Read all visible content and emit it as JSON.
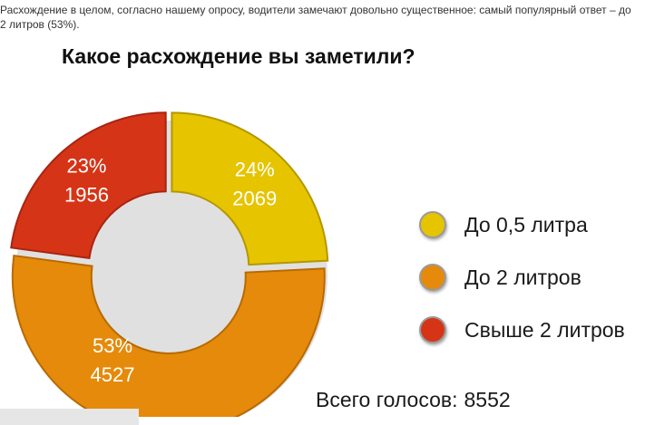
{
  "intro_text": "Расхождение в целом, согласно нашему опросу, водители замечают довольно существенное: самый популярный ответ – до 2 литров (53%).",
  "chart_data": {
    "type": "pie",
    "title": "Какое расхождение вы заметили?",
    "donut": true,
    "slices": [
      {
        "label": "До 0,5 литра",
        "percent": "24%",
        "value": 2069,
        "color": "#e6c400"
      },
      {
        "label": "До 2 литров",
        "percent": "53%",
        "value": 4527,
        "color": "#e58a0a"
      },
      {
        "label": "Свыше 2 литров",
        "percent": "23%",
        "value": 1956,
        "color": "#d63417"
      }
    ],
    "total_label": "Всего голосов:",
    "total_value": "8552",
    "legend_position": "right"
  }
}
